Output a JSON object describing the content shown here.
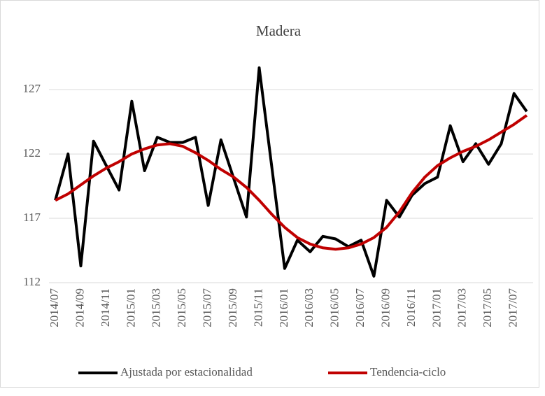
{
  "chart_data": {
    "type": "line",
    "title": "Madera",
    "categories": [
      "2014/07",
      null,
      "2014/09",
      null,
      "2014/11",
      null,
      "2015/01",
      null,
      "2015/03",
      null,
      "2015/05",
      null,
      "2015/07",
      null,
      "2015/09",
      null,
      "2015/11",
      null,
      "2016/01",
      null,
      "2016/03",
      null,
      "2016/05",
      null,
      "2016/07",
      null,
      "2016/09",
      null,
      "2016/11",
      null,
      "2017/01",
      null,
      "2017/03",
      null,
      "2017/05",
      null,
      "2017/07",
      null
    ],
    "series": [
      {
        "name": "Ajustada por estacionalidad",
        "color": "#000000",
        "values": [
          118.4,
          122.0,
          113.3,
          123.0,
          121.1,
          119.2,
          126.1,
          120.7,
          123.3,
          122.9,
          122.9,
          123.3,
          118.0,
          123.1,
          120.1,
          117.1,
          128.7,
          120.9,
          113.1,
          115.3,
          114.4,
          115.6,
          115.4,
          114.8,
          115.3,
          112.5,
          118.4,
          117.1,
          118.8,
          119.7,
          120.2,
          124.2,
          121.4,
          122.8,
          121.2,
          122.8,
          126.7,
          125.3
        ]
      },
      {
        "name": "Tendencia-ciclo",
        "color": "#c00000",
        "values": [
          118.4,
          118.9,
          119.6,
          120.3,
          120.9,
          121.4,
          122.0,
          122.4,
          122.7,
          122.8,
          122.6,
          122.1,
          121.5,
          120.8,
          120.2,
          119.4,
          118.4,
          117.3,
          116.3,
          115.5,
          115.0,
          114.7,
          114.6,
          114.7,
          115.0,
          115.5,
          116.3,
          117.5,
          119.0,
          120.2,
          121.1,
          121.7,
          122.2,
          122.6,
          123.1,
          123.7,
          124.3,
          125.0
        ]
      }
    ],
    "ylim": [
      112,
      130
    ],
    "yticks": [
      112,
      117,
      122,
      127
    ],
    "grid": true,
    "legend": "bottom"
  }
}
